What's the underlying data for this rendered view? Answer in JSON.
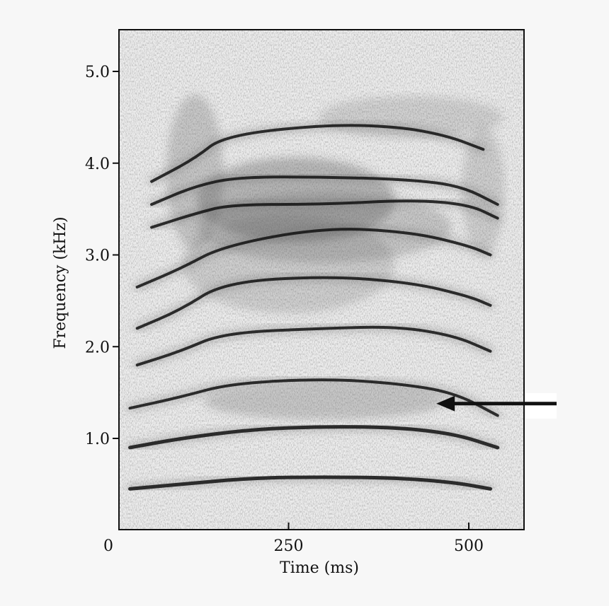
{
  "chart_data": {
    "type": "spectrogram",
    "title": "",
    "xlabel": "Time (ms)",
    "ylabel": "Frequency (kHz)",
    "xlim": [
      0,
      580
    ],
    "ylim": [
      0,
      5.5
    ],
    "x_ticks": [
      {
        "value": 0,
        "label": "0"
      },
      {
        "value": 250,
        "label": "250"
      },
      {
        "value": 500,
        "label": "500"
      }
    ],
    "y_ticks": [
      {
        "value": 1.0,
        "label": "1.0"
      },
      {
        "value": 2.0,
        "label": "2.0"
      },
      {
        "value": 3.0,
        "label": "3.0"
      },
      {
        "value": 4.0,
        "label": "4.0"
      },
      {
        "value": 5.0,
        "label": "5.0"
      }
    ],
    "grid": false,
    "background_color": "#f7f7f7",
    "noise_color": "#c8c8c8",
    "trace_color": "#111111",
    "series": [
      {
        "points": [
          [
            30,
            0.45
          ],
          [
            100,
            0.5
          ],
          [
            200,
            0.57
          ],
          [
            300,
            0.58
          ],
          [
            400,
            0.57
          ],
          [
            480,
            0.52
          ],
          [
            530,
            0.45
          ]
        ]
      },
      {
        "points": [
          [
            30,
            0.9
          ],
          [
            100,
            1.0
          ],
          [
            200,
            1.1
          ],
          [
            300,
            1.13
          ],
          [
            400,
            1.12
          ],
          [
            480,
            1.05
          ],
          [
            540,
            0.9
          ]
        ]
      },
      {
        "points": [
          [
            30,
            1.33
          ],
          [
            100,
            1.45
          ],
          [
            170,
            1.6
          ],
          [
            300,
            1.65
          ],
          [
            400,
            1.6
          ],
          [
            480,
            1.5
          ],
          [
            540,
            1.25
          ]
        ]
      },
      {
        "points": [
          [
            40,
            1.8
          ],
          [
            100,
            1.95
          ],
          [
            160,
            2.15
          ],
          [
            300,
            2.2
          ],
          [
            400,
            2.22
          ],
          [
            480,
            2.12
          ],
          [
            530,
            1.95
          ]
        ]
      },
      {
        "points": [
          [
            40,
            2.2
          ],
          [
            100,
            2.4
          ],
          [
            160,
            2.7
          ],
          [
            300,
            2.77
          ],
          [
            420,
            2.7
          ],
          [
            500,
            2.55
          ],
          [
            530,
            2.45
          ]
        ]
      },
      {
        "points": [
          [
            40,
            2.65
          ],
          [
            100,
            2.85
          ],
          [
            160,
            3.1
          ],
          [
            300,
            3.3
          ],
          [
            420,
            3.25
          ],
          [
            500,
            3.1
          ],
          [
            530,
            3.0
          ]
        ]
      },
      {
        "points": [
          [
            60,
            3.3
          ],
          [
            120,
            3.45
          ],
          [
            170,
            3.55
          ],
          [
            300,
            3.55
          ],
          [
            420,
            3.6
          ],
          [
            500,
            3.55
          ],
          [
            540,
            3.4
          ]
        ]
      },
      {
        "points": [
          [
            60,
            3.55
          ],
          [
            120,
            3.75
          ],
          [
            180,
            3.85
          ],
          [
            300,
            3.85
          ],
          [
            420,
            3.82
          ],
          [
            490,
            3.75
          ],
          [
            540,
            3.55
          ]
        ]
      },
      {
        "points": [
          [
            60,
            3.8
          ],
          [
            120,
            4.05
          ],
          [
            160,
            4.3
          ],
          [
            300,
            4.42
          ],
          [
            400,
            4.4
          ],
          [
            470,
            4.3
          ],
          [
            520,
            4.15
          ]
        ]
      }
    ],
    "annotation": {
      "type": "arrow",
      "points_to": [
        455,
        1.38
      ],
      "tail_at": [
        610,
        1.38
      ]
    }
  }
}
